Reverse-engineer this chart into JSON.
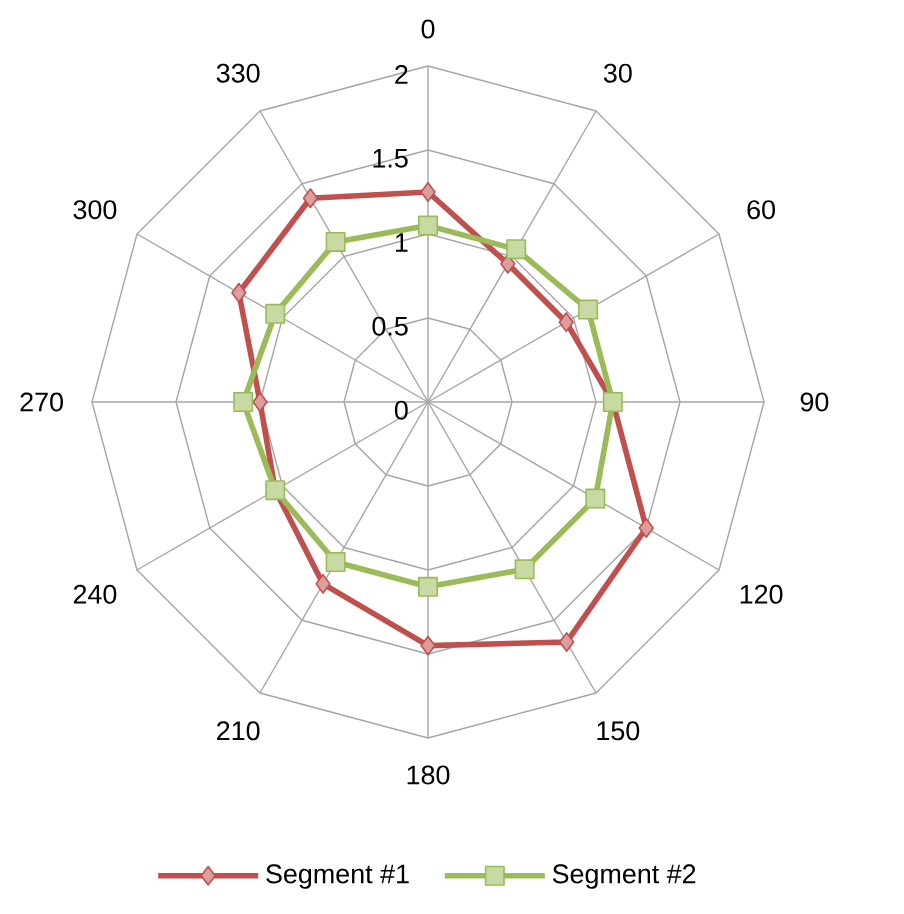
{
  "chart_data": {
    "type": "radar",
    "categories": [
      "0",
      "30",
      "60",
      "90",
      "120",
      "150",
      "180",
      "210",
      "240",
      "270",
      "300",
      "330"
    ],
    "series": [
      {
        "name": "Segment #1",
        "color": "#c0504d",
        "marker": "diamond",
        "values": [
          1.25,
          0.95,
          0.95,
          1.1,
          1.5,
          1.65,
          1.45,
          1.25,
          1.05,
          1.0,
          1.3,
          1.4
        ]
      },
      {
        "name": "Segment #2",
        "color": "#9bbb59",
        "marker": "square",
        "values": [
          1.05,
          1.05,
          1.1,
          1.1,
          1.15,
          1.15,
          1.1,
          1.1,
          1.05,
          1.1,
          1.05,
          1.1
        ]
      }
    ],
    "ylim": [
      0,
      2
    ],
    "yticks": [
      0,
      0.5,
      1,
      1.5,
      2
    ],
    "grid": true,
    "legend": "bottom"
  }
}
